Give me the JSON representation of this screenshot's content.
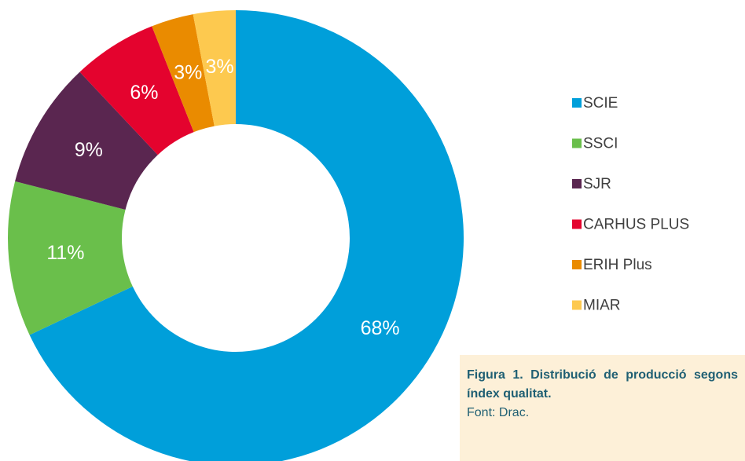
{
  "chart_data": {
    "type": "donut",
    "categories": [
      "SCIE",
      "SSCI",
      "SJR",
      "CARHUS PLUS",
      "ERIH Plus",
      "MIAR"
    ],
    "values": [
      68,
      11,
      9,
      6,
      3,
      3
    ],
    "value_labels": [
      "68%",
      "11%",
      "9%",
      "6%",
      "3%",
      "3%"
    ],
    "colors": [
      "#009fda",
      "#6abf4b",
      "#5a2650",
      "#e4032e",
      "#ea8b00",
      "#fdc94f"
    ],
    "legend": "right"
  },
  "caption": {
    "title": "Figura 1. Distribució de producció segons índex qualitat.",
    "source": "Font: Drac."
  }
}
